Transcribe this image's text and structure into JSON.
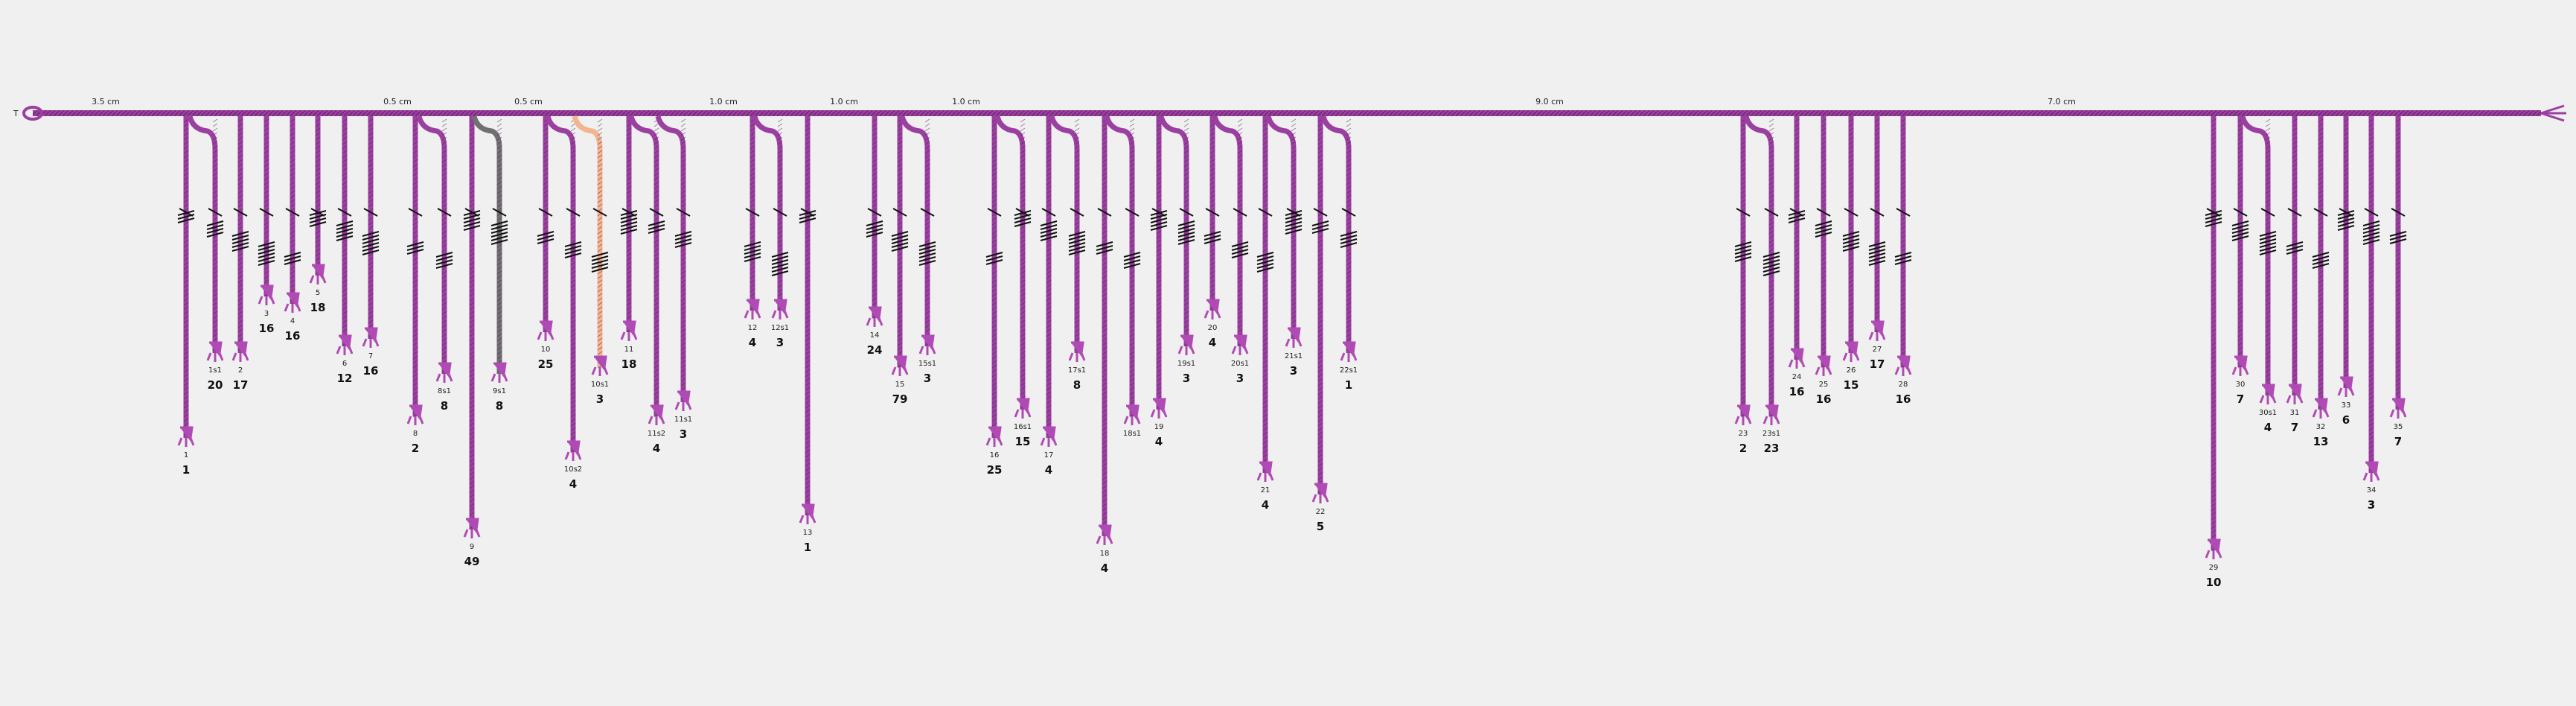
{
  "colors": {
    "background": "#f0f0f0",
    "cord_default": "#9b3fa0",
    "cord_dark": "#6e2a73",
    "cord_gray": "#707070",
    "cord_peach": "#f2b58c",
    "knot": "#111111",
    "tail": "#b04bb5"
  },
  "primary": {
    "start_label": "T"
  },
  "spacings": [
    "3.5 cm",
    "0.5 cm",
    "0.5 cm",
    "1.0 cm",
    "1.0 cm",
    "1.0 cm",
    "9.0 cm",
    "7.0 cm"
  ],
  "cords": [
    {
      "label": "1",
      "value": "1",
      "color": "cord_default",
      "end": 0.62,
      "sub": false
    },
    {
      "label": "1s1",
      "value": "20",
      "color": "cord_default",
      "end": 0.5,
      "sub": true
    },
    {
      "label": "2",
      "value": "17",
      "color": "cord_default",
      "end": 0.5,
      "sub": false
    },
    {
      "label": "3",
      "value": "16",
      "color": "cord_default",
      "end": 0.42,
      "sub": false
    },
    {
      "label": "4",
      "value": "16",
      "color": "cord_default",
      "end": 0.43,
      "sub": false
    },
    {
      "label": "5",
      "value": "18",
      "color": "cord_default",
      "end": 0.39,
      "sub": false
    },
    {
      "label": "6",
      "value": "12",
      "color": "cord_default",
      "end": 0.49,
      "sub": false
    },
    {
      "label": "7",
      "value": "16",
      "color": "cord_default",
      "end": 0.48,
      "sub": false
    },
    {
      "label": "8",
      "value": "2",
      "color": "cord_default",
      "end": 0.59,
      "sub": false
    },
    {
      "label": "8s1",
      "value": "8",
      "color": "cord_default",
      "end": 0.53,
      "sub": true
    },
    {
      "label": "9",
      "value": "49",
      "color": "cord_default",
      "end": 0.75,
      "sub": false
    },
    {
      "label": "9s1",
      "value": "8",
      "color": "cord_gray",
      "end": 0.53,
      "sub": true
    },
    {
      "label": "10",
      "value": "25",
      "color": "cord_default",
      "end": 0.47,
      "sub": false
    },
    {
      "label": "10s2",
      "value": "4",
      "color": "cord_default",
      "end": 0.64,
      "sub": true
    },
    {
      "label": "10s1",
      "value": "3",
      "color": "cord_peach",
      "end": 0.52,
      "sub": true
    },
    {
      "label": "11",
      "value": "18",
      "color": "cord_default",
      "end": 0.47,
      "sub": false
    },
    {
      "label": "11s2",
      "value": "4",
      "color": "cord_default",
      "end": 0.59,
      "sub": true
    },
    {
      "label": "11s1",
      "value": "3",
      "color": "cord_default",
      "end": 0.57,
      "sub": true
    },
    {
      "label": "12",
      "value": "4",
      "color": "cord_default",
      "end": 0.44,
      "sub": false
    },
    {
      "label": "12s1",
      "value": "3",
      "color": "cord_default",
      "end": 0.44,
      "sub": true
    },
    {
      "label": "13",
      "value": "1",
      "color": "cord_default",
      "end": 0.73,
      "sub": false
    },
    {
      "label": "14",
      "value": "24",
      "color": "cord_default",
      "end": 0.45,
      "sub": false
    },
    {
      "label": "15",
      "value": "79",
      "color": "cord_default",
      "end": 0.52,
      "sub": false
    },
    {
      "label": "15s1",
      "value": "3",
      "color": "cord_default",
      "end": 0.49,
      "sub": true
    },
    {
      "label": "16",
      "value": "25",
      "color": "cord_default",
      "end": 0.62,
      "sub": false
    },
    {
      "label": "16s1",
      "value": "15",
      "color": "cord_default",
      "end": 0.58,
      "sub": true
    },
    {
      "label": "17",
      "value": "4",
      "color": "cord_default",
      "end": 0.62,
      "sub": false
    },
    {
      "label": "17s1",
      "value": "8",
      "color": "cord_default",
      "end": 0.5,
      "sub": true
    },
    {
      "label": "18",
      "value": "4",
      "color": "cord_default",
      "end": 0.76,
      "sub": false
    },
    {
      "label": "18s1",
      "value": "",
      "color": "cord_default",
      "end": 0.59,
      "sub": true
    },
    {
      "label": "19",
      "value": "4",
      "color": "cord_default",
      "end": 0.58,
      "sub": false
    },
    {
      "label": "19s1",
      "value": "3",
      "color": "cord_default",
      "end": 0.49,
      "sub": true
    },
    {
      "label": "20",
      "value": "4",
      "color": "cord_default",
      "end": 0.44,
      "sub": false
    },
    {
      "label": "20s1",
      "value": "3",
      "color": "cord_default",
      "end": 0.49,
      "sub": true
    },
    {
      "label": "21",
      "value": "4",
      "color": "cord_default",
      "end": 0.67,
      "sub": false
    },
    {
      "label": "21s1",
      "value": "3",
      "color": "cord_default",
      "end": 0.48,
      "sub": true
    },
    {
      "label": "22",
      "value": "5",
      "color": "cord_default",
      "end": 0.7,
      "sub": false
    },
    {
      "label": "22s1",
      "value": "1",
      "color": "cord_default",
      "end": 0.5,
      "sub": true
    },
    {
      "label": "23",
      "value": "2",
      "color": "cord_default",
      "end": 0.59,
      "sub": false
    },
    {
      "label": "23s1",
      "value": "23",
      "color": "cord_default",
      "end": 0.59,
      "sub": true
    },
    {
      "label": "24",
      "value": "16",
      "color": "cord_default",
      "end": 0.51,
      "sub": false
    },
    {
      "label": "25",
      "value": "16",
      "color": "cord_default",
      "end": 0.52,
      "sub": false
    },
    {
      "label": "26",
      "value": "15",
      "color": "cord_default",
      "end": 0.5,
      "sub": false
    },
    {
      "label": "27",
      "value": "17",
      "color": "cord_default",
      "end": 0.47,
      "sub": false
    },
    {
      "label": "28",
      "value": "16",
      "color": "cord_default",
      "end": 0.52,
      "sub": false
    },
    {
      "label": "29",
      "value": "10",
      "color": "cord_default",
      "end": 0.78,
      "sub": false
    },
    {
      "label": "30",
      "value": "7",
      "color": "cord_default",
      "end": 0.52,
      "sub": false
    },
    {
      "label": "30s1",
      "value": "4",
      "color": "cord_default",
      "end": 0.56,
      "sub": true
    },
    {
      "label": "31",
      "value": "7",
      "color": "cord_default",
      "end": 0.56,
      "sub": false
    },
    {
      "label": "32",
      "value": "13",
      "color": "cord_default",
      "end": 0.58,
      "sub": false
    },
    {
      "label": "33",
      "value": "6",
      "color": "cord_default",
      "end": 0.55,
      "sub": false
    },
    {
      "label": "34",
      "value": "3",
      "color": "cord_default",
      "end": 0.67,
      "sub": false
    },
    {
      "label": "35",
      "value": "7",
      "color": "cord_default",
      "end": 0.58,
      "sub": false
    }
  ]
}
